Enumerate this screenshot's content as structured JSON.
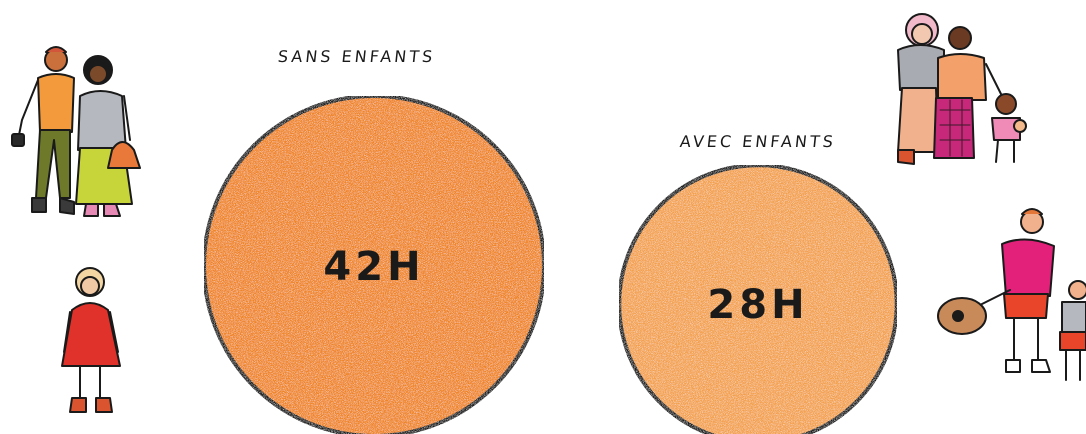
{
  "chart_data": {
    "type": "bubble",
    "unit": "H",
    "categories": [
      "SANS ENFANTS",
      "AVEC ENFANTS"
    ],
    "values": [
      42,
      28
    ],
    "value_labels": [
      "42H",
      "28H"
    ],
    "colors": [
      "#ef8424",
      "#f3a04c"
    ],
    "outline_color": "#1a1a1a"
  },
  "illustrations": [
    {
      "name": "couple-icon"
    },
    {
      "name": "girl-icon"
    },
    {
      "name": "family-with-daughter-icon"
    },
    {
      "name": "father-with-son-and-guitar-icon"
    }
  ]
}
